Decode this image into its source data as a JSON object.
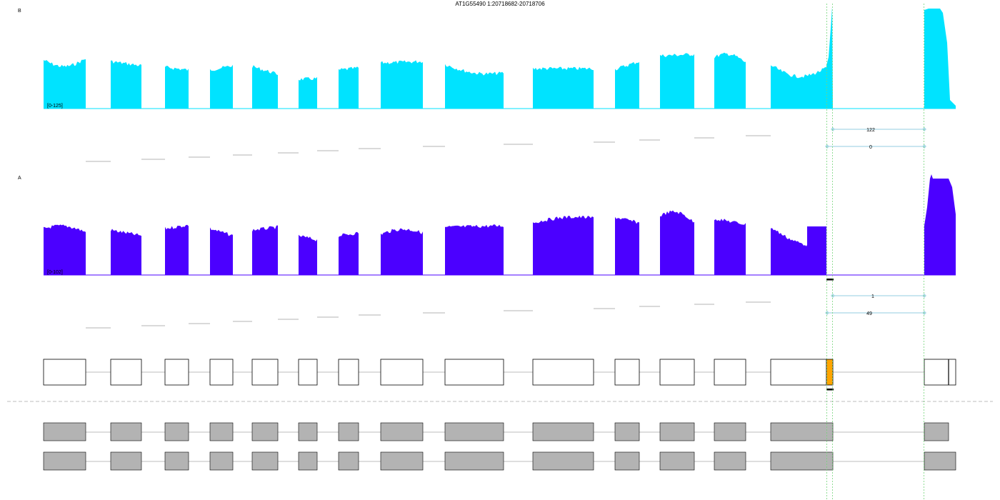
{
  "header": {
    "title": "AT1G55490 1:20718682-20718706"
  },
  "colors": {
    "track_b": "#00e3ff",
    "track_a": "#4b00ff",
    "exon_outline": "#000000",
    "exon_fill": "#ffffff",
    "exon_grey": "#b3b3b3",
    "highlight_exon": "#ffa500",
    "junction_arc": "#a9d8e6",
    "junction_line": "#c2c2c2",
    "intron_line": "#bdbdbd",
    "guide_line": "#76d57a",
    "separator": "#bdbdbd"
  },
  "tracks": {
    "b": {
      "label": "B",
      "range": "[0-125]"
    },
    "a": {
      "label": "A",
      "range": "[0-102]"
    }
  },
  "junctions": {
    "b": [
      "122",
      "0"
    ],
    "a": [
      "1",
      "49"
    ]
  }
}
